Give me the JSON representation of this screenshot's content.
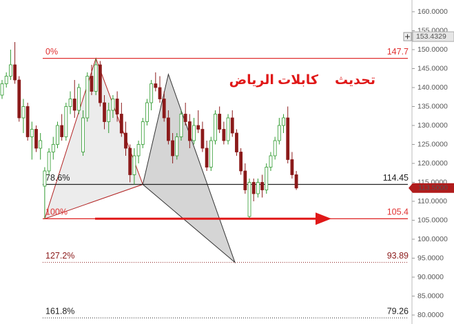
{
  "chart_data": {
    "type": "candlestick",
    "annotations": [
      "تحديث",
      "كابلات الرياض"
    ],
    "categories": [
      null,
      null,
      null,
      null,
      null,
      null,
      null,
      null,
      null,
      null,
      null,
      null,
      null,
      null,
      null,
      null,
      null,
      null,
      null,
      null,
      null,
      null,
      null,
      null,
      null,
      null,
      null,
      null,
      null,
      null,
      null,
      null,
      null,
      null,
      null,
      null,
      null,
      null,
      null,
      null,
      null,
      null,
      null,
      null,
      null,
      null,
      null,
      null,
      null,
      null,
      null,
      null,
      null,
      null,
      null,
      null,
      null,
      null,
      null,
      null,
      null,
      null,
      null,
      null,
      null,
      null,
      null,
      null,
      null,
      null
    ],
    "open": [
      138,
      141,
      143,
      146,
      142,
      132,
      135,
      127,
      129,
      124,
      114,
      118,
      123,
      125,
      130,
      127,
      135,
      137,
      134,
      123,
      132,
      143,
      139,
      146,
      136,
      131,
      134,
      137,
      133,
      128,
      124,
      117,
      122,
      125,
      131,
      136,
      141,
      140,
      137,
      132,
      126,
      122,
      127,
      133,
      131,
      126,
      130,
      129,
      124,
      119,
      126,
      133,
      129,
      126,
      132,
      128,
      123,
      118,
      106,
      115,
      112,
      115,
      113,
      119,
      122,
      126,
      130,
      132,
      121,
      117
    ],
    "high": [
      142,
      144,
      150,
      152,
      143,
      137,
      136,
      131,
      130,
      128,
      119,
      124,
      127,
      131,
      133,
      136,
      139,
      142,
      141,
      134,
      144,
      146,
      147.7,
      147,
      138,
      136,
      138,
      139,
      136,
      131,
      125,
      124,
      126,
      132,
      137,
      142,
      144,
      143,
      139,
      134,
      128,
      128,
      134,
      136,
      133,
      132,
      134,
      131,
      126,
      127,
      134,
      135,
      131,
      133,
      134,
      129,
      124,
      120,
      116,
      116,
      116,
      117,
      120,
      123,
      127,
      132,
      133,
      135,
      123,
      118
    ],
    "low": [
      137,
      140,
      142,
      141,
      131,
      128,
      126,
      121,
      123,
      121,
      105.4,
      117,
      121,
      124,
      126,
      126,
      133,
      132,
      133,
      122,
      131,
      138,
      138,
      135,
      129,
      128,
      132,
      131,
      127,
      122,
      115,
      114.45,
      120,
      124,
      130,
      134,
      139,
      136,
      131,
      125,
      120,
      121,
      126,
      130,
      124,
      125,
      128,
      123,
      118,
      118,
      125,
      128,
      125,
      125,
      127,
      122,
      117,
      112,
      105.4,
      110,
      111,
      111,
      112,
      118,
      121,
      125,
      128,
      120,
      116,
      113
    ],
    "close": [
      141,
      143,
      146,
      142,
      132,
      135,
      127,
      129,
      124,
      126,
      118,
      123,
      125,
      130,
      127,
      135,
      137,
      134,
      140,
      132,
      143,
      139,
      146,
      136,
      131,
      134,
      137,
      133,
      128,
      124,
      117,
      122,
      125,
      131,
      136,
      141,
      140,
      137,
      132,
      126,
      122,
      127,
      133,
      131,
      126,
      130,
      129,
      124,
      119,
      126,
      133,
      129,
      126,
      132,
      128,
      123,
      118,
      113,
      115,
      112,
      115,
      113,
      119,
      122,
      126,
      130,
      132,
      121,
      117,
      113.5
    ],
    "up_color": "#2e9a2e",
    "down_color": "#8b1a1a",
    "fib_levels": [
      {
        "label": "0%",
        "value": 147.7,
        "color": "#e03030",
        "style": "solid"
      },
      {
        "label": "78.6%",
        "value": 114.45,
        "color": "#222222",
        "style": "solid"
      },
      {
        "label": "100%",
        "value": 105.4,
        "color": "#e03030",
        "style": "solid"
      },
      {
        "label": "127.2%",
        "value": 93.89,
        "color": "#8b1a1a",
        "style": "dotted"
      },
      {
        "label": "161.8%",
        "value": 79.26,
        "color": "#222222",
        "style": "dotted"
      }
    ],
    "pattern": {
      "x": [
        10,
        22,
        33,
        39,
        54.6
      ],
      "y": [
        105.4,
        147.7,
        114.45,
        143.5,
        93.89
      ]
    },
    "last_price": 113.5,
    "last_price_label": "113.5000",
    "marker_price": 153.4329,
    "ylim": [
      80,
      160
    ],
    "yticks": [
      {
        "value": 80,
        "label": "80.0000"
      },
      {
        "value": 85,
        "label": "85.0000"
      },
      {
        "value": 90,
        "label": "90.0000"
      },
      {
        "value": 95,
        "label": "95.0000"
      },
      {
        "value": 100,
        "label": "100.0000"
      },
      {
        "value": 105,
        "label": "105.0000"
      },
      {
        "value": 110,
        "label": "110.0000"
      },
      {
        "value": 115,
        "label": "115.0000"
      },
      {
        "value": 120,
        "label": "120.0000"
      },
      {
        "value": 125,
        "label": "125.0000"
      },
      {
        "value": 130,
        "label": "130.0000"
      },
      {
        "value": 135,
        "label": "135.0000"
      },
      {
        "value": 140,
        "label": "140.0000"
      },
      {
        "value": 145,
        "label": "145.0000"
      },
      {
        "value": 150,
        "label": "150.0000"
      },
      {
        "value": 155,
        "label": "155.0000"
      },
      {
        "value": 160,
        "label": "160.0000"
      }
    ]
  }
}
